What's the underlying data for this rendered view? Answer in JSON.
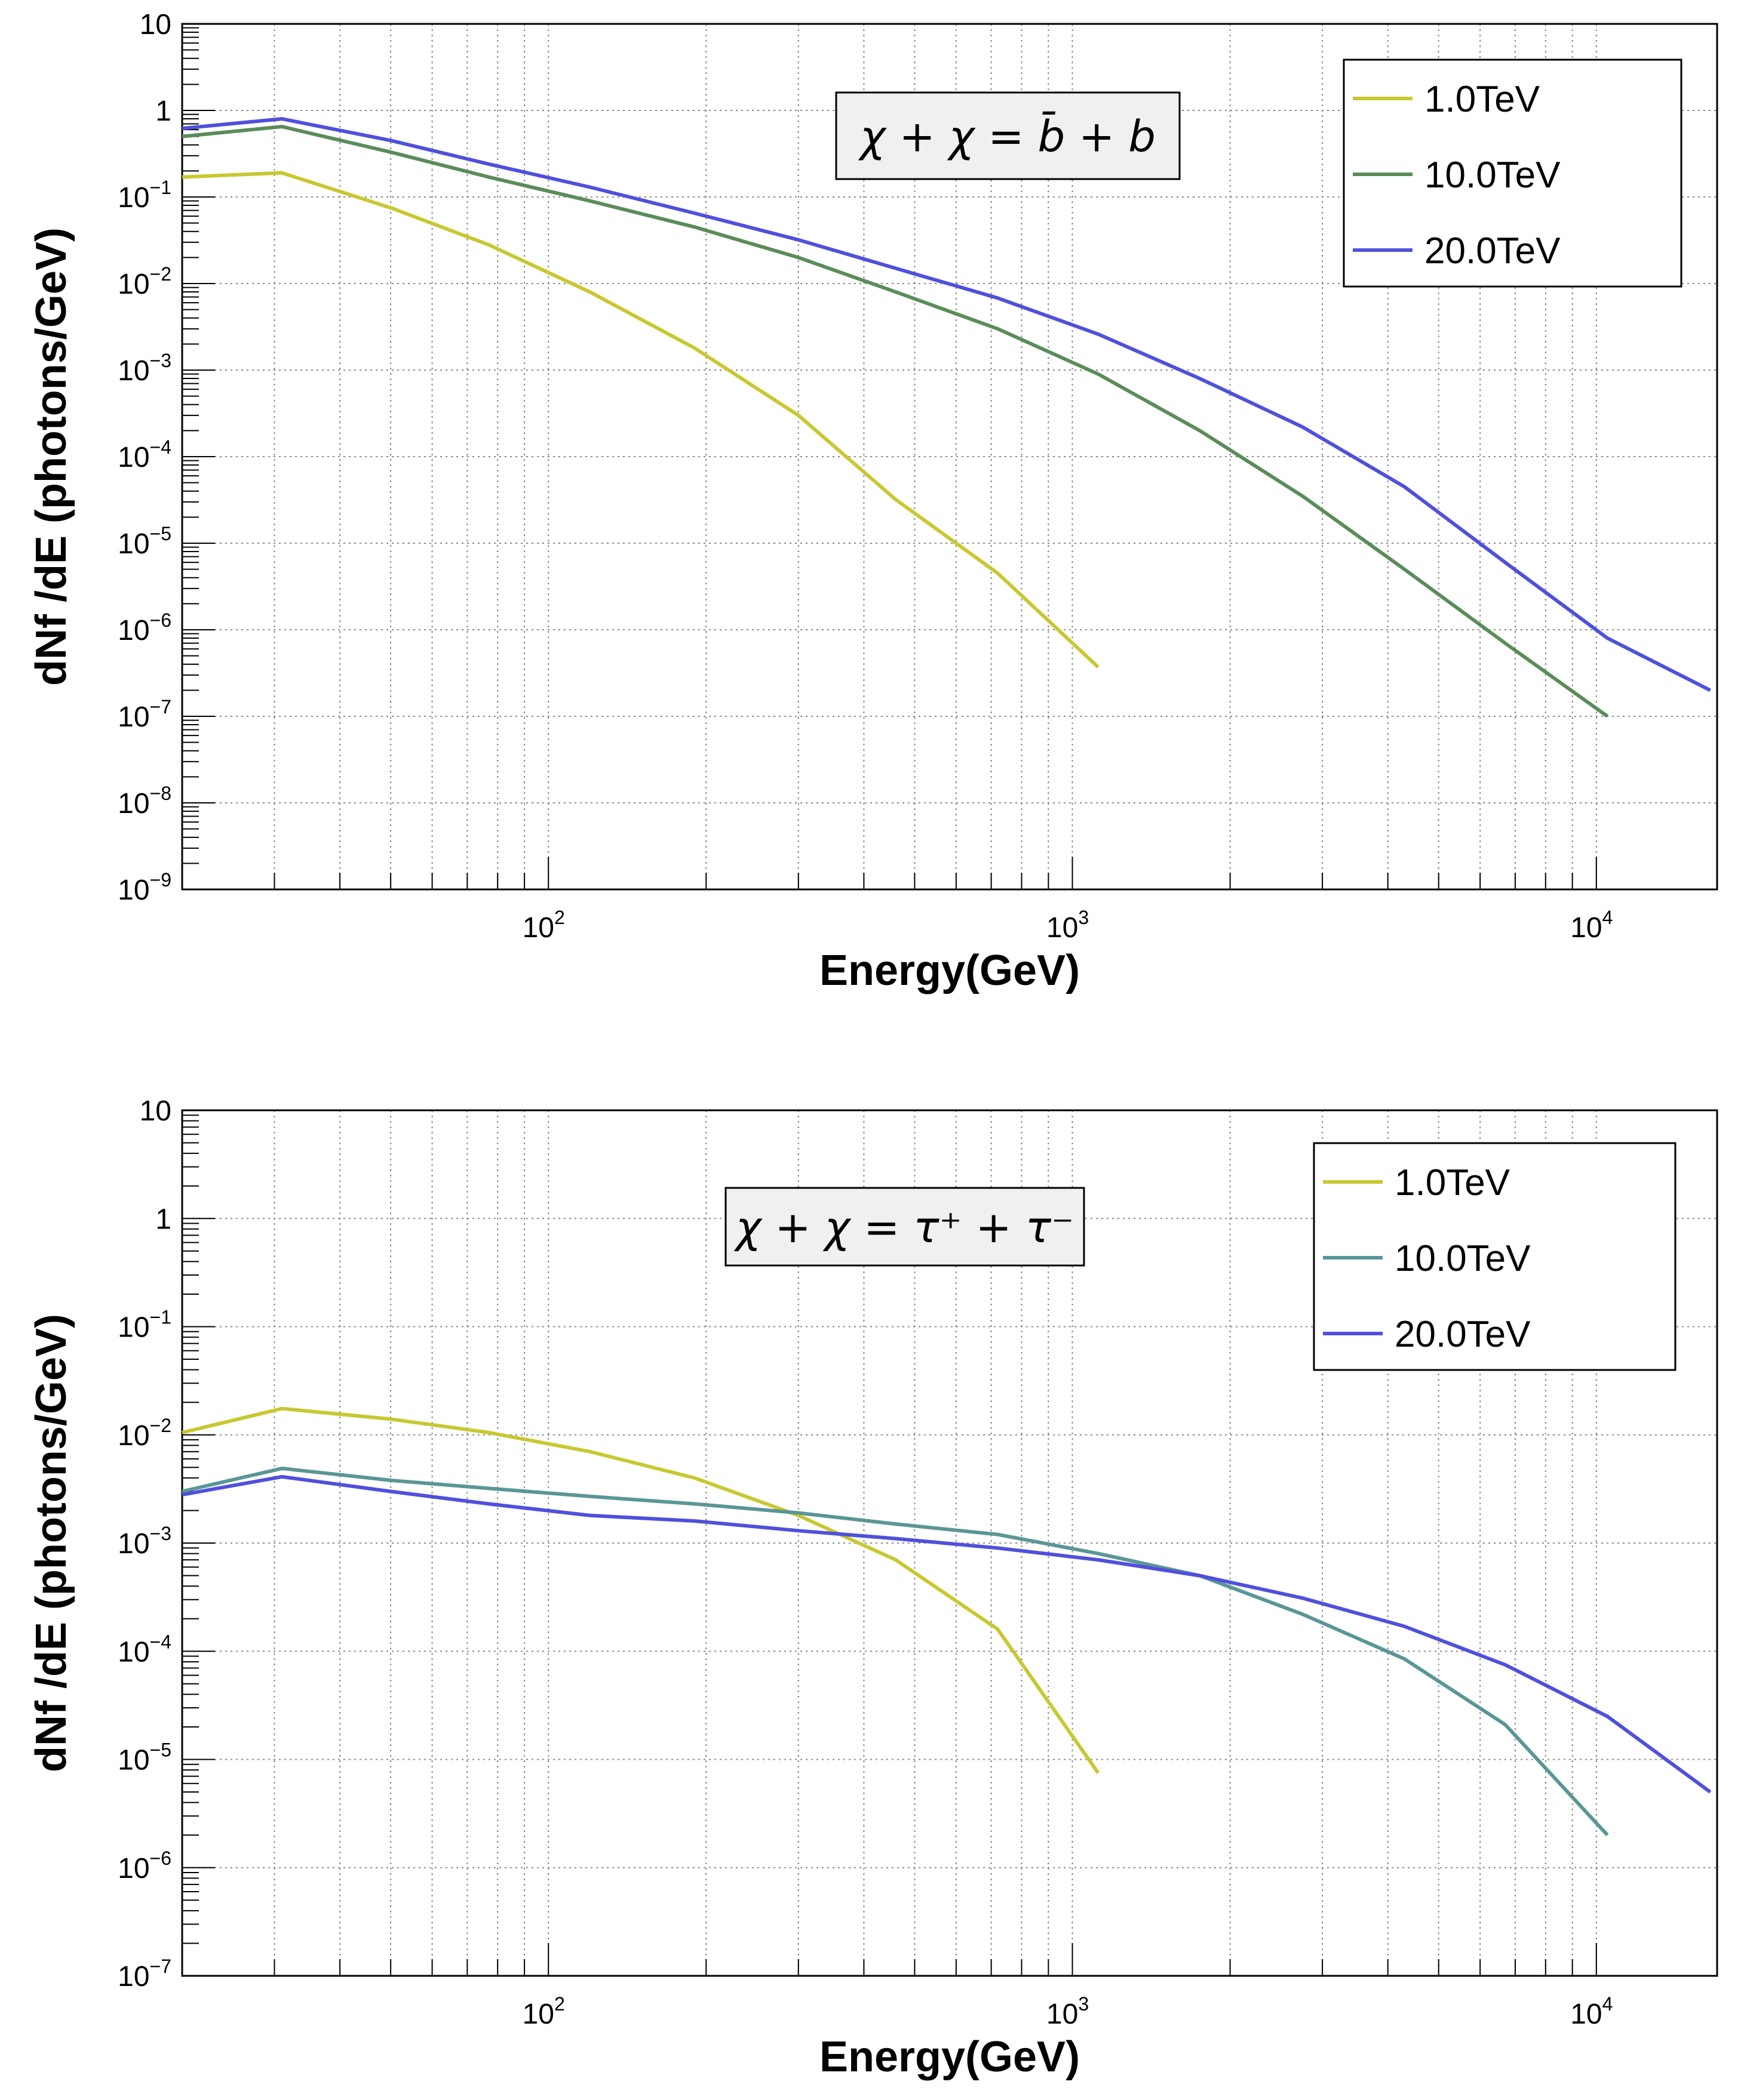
{
  "colors": {
    "series_1TeV": "#c8c832",
    "series_10TeV_top": "#5a8c5a",
    "series_10TeV_bottom": "#5a9696",
    "series_20TeV": "#5050dc",
    "grid": "#888888",
    "label_box_bg": "#f0f0f0"
  },
  "chart_data": [
    {
      "type": "line",
      "annotation": "χ + χ = b̄ + b",
      "xlabel": "Energy(GeV)",
      "ylabel": "dNf /dE (photons/GeV)",
      "xscale": "log",
      "yscale": "log",
      "xlim": [
        20,
        17000
      ],
      "ylim": [
        1e-09,
        10
      ],
      "grid": true,
      "legend": "top-right",
      "x_ticks": [
        {
          "value": 100,
          "mantissa": "10",
          "exp": "2"
        },
        {
          "value": 1000,
          "mantissa": "10",
          "exp": "3"
        },
        {
          "value": 10000,
          "mantissa": "10",
          "exp": "4"
        }
      ],
      "y_ticks": [
        {
          "value": 10,
          "mantissa": "10",
          "exp": ""
        },
        {
          "value": 1,
          "mantissa": "1",
          "exp": ""
        },
        {
          "value": 0.1,
          "mantissa": "10",
          "exp": "−1"
        },
        {
          "value": 0.01,
          "mantissa": "10",
          "exp": "−2"
        },
        {
          "value": 0.001,
          "mantissa": "10",
          "exp": "−3"
        },
        {
          "value": 0.0001,
          "mantissa": "10",
          "exp": "−4"
        },
        {
          "value": 1e-05,
          "mantissa": "10",
          "exp": "−5"
        },
        {
          "value": 1e-06,
          "mantissa": "10",
          "exp": "−6"
        },
        {
          "value": 1e-07,
          "mantissa": "10",
          "exp": "−7"
        },
        {
          "value": 1e-08,
          "mantissa": "10",
          "exp": "−8"
        },
        {
          "value": 1e-09,
          "mantissa": "10",
          "exp": "−9"
        }
      ],
      "series": [
        {
          "name": "1.0TeV",
          "color": "#c8c832",
          "x": [
            20,
            31,
            50,
            77,
            120,
            190,
            300,
            460,
            720,
            1120
          ],
          "y": [
            0.17,
            0.19,
            0.075,
            0.028,
            0.008,
            0.0018,
            0.0003,
            3.2e-05,
            4.5e-06,
            3.7e-07
          ]
        },
        {
          "name": "10.0TeV",
          "color": "#5a8c5a",
          "x": [
            20,
            31,
            50,
            77,
            120,
            190,
            300,
            460,
            720,
            1120,
            1750,
            2750,
            4300,
            6700,
            10500
          ],
          "y": [
            0.5,
            0.65,
            0.33,
            0.17,
            0.09,
            0.045,
            0.02,
            0.008,
            0.003,
            0.0009,
            0.0002,
            3.5e-05,
            5e-06,
            7e-07,
            1e-07
          ]
        },
        {
          "name": "20.0TeV",
          "color": "#5050dc",
          "x": [
            20,
            31,
            50,
            77,
            120,
            190,
            300,
            460,
            720,
            1120,
            1750,
            2750,
            4300,
            6700,
            10500,
            16500
          ],
          "y": [
            0.62,
            0.8,
            0.45,
            0.24,
            0.13,
            0.065,
            0.032,
            0.015,
            0.0068,
            0.0026,
            0.0008,
            0.00022,
            4.5e-05,
            6e-06,
            8e-07,
            2e-07
          ]
        }
      ]
    },
    {
      "type": "line",
      "annotation": "χ + χ = τ⁺ + τ⁻",
      "xlabel": "Energy(GeV)",
      "ylabel": "dNf /dE (photons/GeV)",
      "xscale": "log",
      "yscale": "log",
      "xlim": [
        20,
        17000
      ],
      "ylim": [
        1e-07,
        10
      ],
      "grid": true,
      "legend": "top-right",
      "x_ticks": [
        {
          "value": 100,
          "mantissa": "10",
          "exp": "2"
        },
        {
          "value": 1000,
          "mantissa": "10",
          "exp": "3"
        },
        {
          "value": 10000,
          "mantissa": "10",
          "exp": "4"
        }
      ],
      "y_ticks": [
        {
          "value": 10,
          "mantissa": "10",
          "exp": ""
        },
        {
          "value": 1,
          "mantissa": "1",
          "exp": ""
        },
        {
          "value": 0.1,
          "mantissa": "10",
          "exp": "−1"
        },
        {
          "value": 0.01,
          "mantissa": "10",
          "exp": "−2"
        },
        {
          "value": 0.001,
          "mantissa": "10",
          "exp": "−3"
        },
        {
          "value": 0.0001,
          "mantissa": "10",
          "exp": "−4"
        },
        {
          "value": 1e-05,
          "mantissa": "10",
          "exp": "−5"
        },
        {
          "value": 1e-06,
          "mantissa": "10",
          "exp": "−6"
        },
        {
          "value": 1e-07,
          "mantissa": "10",
          "exp": "−7"
        }
      ],
      "series": [
        {
          "name": "1.0TeV",
          "color": "#c8c832",
          "x": [
            20,
            31,
            50,
            77,
            120,
            190,
            300,
            460,
            720,
            1120
          ],
          "y": [
            0.0105,
            0.0175,
            0.014,
            0.0105,
            0.007,
            0.004,
            0.0018,
            0.0007,
            0.00016,
            7.5e-06
          ]
        },
        {
          "name": "10.0TeV",
          "color": "#5a9696",
          "x": [
            20,
            31,
            50,
            77,
            120,
            190,
            300,
            460,
            720,
            1120,
            1750,
            2750,
            4300,
            6700,
            10500
          ],
          "y": [
            0.003,
            0.0049,
            0.0038,
            0.0032,
            0.0027,
            0.0023,
            0.0019,
            0.0015,
            0.0012,
            0.0008,
            0.0005,
            0.00022,
            8.5e-05,
            2.1e-05,
            2e-06
          ]
        },
        {
          "name": "20.0TeV",
          "color": "#5050dc",
          "x": [
            20,
            31,
            50,
            77,
            120,
            190,
            300,
            460,
            720,
            1120,
            1750,
            2750,
            4300,
            6700,
            10500,
            16500
          ],
          "y": [
            0.0028,
            0.0041,
            0.003,
            0.0023,
            0.0018,
            0.0016,
            0.0013,
            0.0011,
            0.0009,
            0.0007,
            0.0005,
            0.00031,
            0.00017,
            7.5e-05,
            2.5e-05,
            5e-06
          ]
        }
      ]
    }
  ]
}
